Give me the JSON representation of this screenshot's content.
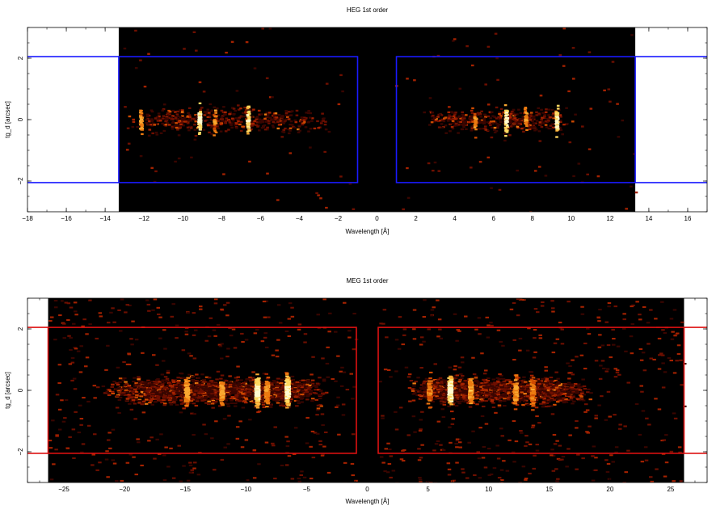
{
  "chart_data": [
    {
      "type": "heatmap",
      "title": "HEG 1st order",
      "xlabel": "Wavelength [Å]",
      "ylabel": "tg_d [arcsec]",
      "xlim": [
        -18,
        17
      ],
      "ylim": [
        -3,
        3
      ],
      "xticks": [
        -18,
        -16,
        -14,
        -12,
        -10,
        -8,
        -6,
        -4,
        -2,
        0,
        2,
        4,
        6,
        8,
        10,
        12,
        14,
        16
      ],
      "yticks": [
        -2,
        0,
        2
      ],
      "data_extent_x": [
        -13.3,
        13.3
      ],
      "colormap": "black-red-orange-yellow",
      "background_color": "#000000",
      "extraction_regions": [
        {
          "x": [
            -13.3,
            -1.0
          ],
          "y": [
            -2.05,
            2.05
          ]
        },
        {
          "x": [
            1.0,
            13.3
          ],
          "y": [
            -2.05,
            2.05
          ]
        }
      ],
      "region_color": "#1a1aff",
      "emission_lines": [
        {
          "x": -12.2,
          "strength": 0.6
        },
        {
          "x": -9.2,
          "strength": 1.0
        },
        {
          "x": -8.4,
          "strength": 0.45
        },
        {
          "x": -6.7,
          "strength": 0.9
        },
        {
          "x": 5.0,
          "strength": 0.4
        },
        {
          "x": 6.6,
          "strength": 0.95
        },
        {
          "x": 7.6,
          "strength": 0.45
        },
        {
          "x": 9.2,
          "strength": 1.0
        }
      ],
      "count_extent": {
        "neg": [
          -13.0,
          -2.2
        ],
        "pos": [
          2.2,
          10.2
        ]
      }
    },
    {
      "type": "heatmap",
      "title": "MEG 1st order",
      "xlabel": "Wavelength [Å]",
      "ylabel": "tg_d [arcsec]",
      "xlim": [
        -28,
        28
      ],
      "ylim": [
        -3,
        3
      ],
      "xticks": [
        -25,
        -20,
        -15,
        -10,
        -5,
        0,
        5,
        10,
        15,
        20,
        25
      ],
      "yticks": [
        -2,
        0,
        2
      ],
      "data_extent_x": [
        -26.3,
        26.1
      ],
      "colormap": "black-red-orange-yellow",
      "background_color": "#000000",
      "extraction_regions": [
        {
          "x": [
            -26.3,
            -0.9
          ],
          "y": [
            -2.05,
            2.05
          ]
        },
        {
          "x": [
            0.9,
            26.1
          ],
          "y": [
            -2.05,
            2.05
          ]
        }
      ],
      "region_color": "#dd1111",
      "emission_lines": [
        {
          "x": -15.0,
          "strength": 0.55
        },
        {
          "x": -12.1,
          "strength": 0.55
        },
        {
          "x": -9.2,
          "strength": 1.0
        },
        {
          "x": -6.7,
          "strength": 0.95
        },
        {
          "x": -8.4,
          "strength": 0.45
        },
        {
          "x": 5.0,
          "strength": 0.35
        },
        {
          "x": 6.7,
          "strength": 1.0
        },
        {
          "x": 8.4,
          "strength": 0.55
        },
        {
          "x": 12.1,
          "strength": 0.5
        },
        {
          "x": 13.5,
          "strength": 0.4
        }
      ],
      "count_extent": {
        "neg": [
          -22.0,
          -3.0
        ],
        "pos": [
          3.0,
          18.5
        ]
      }
    }
  ]
}
